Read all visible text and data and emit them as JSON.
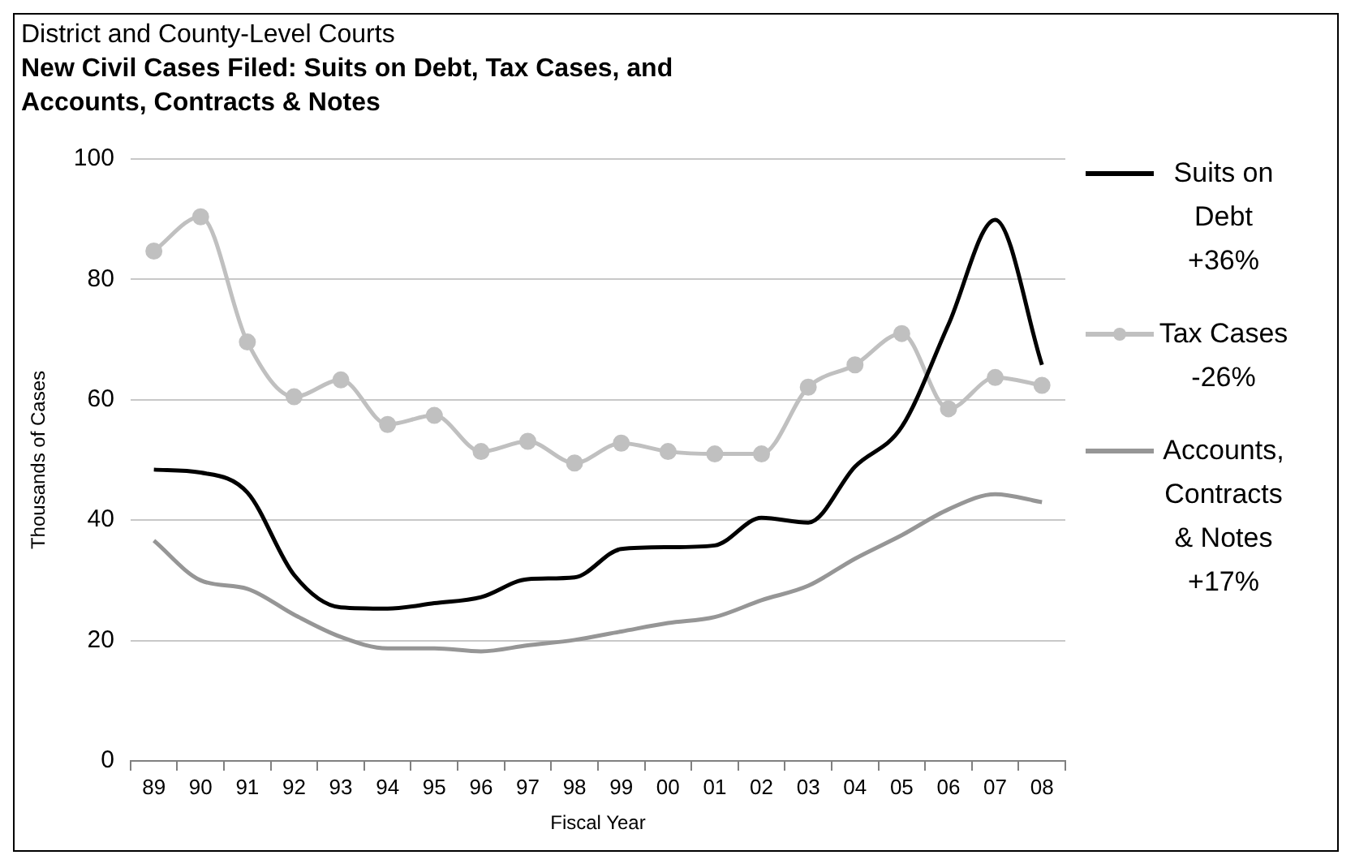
{
  "chart_data": {
    "type": "line",
    "subtitle": "District and County-Level Courts",
    "title": "New Civil Cases Filed: Suits on Debt, Tax Cases, and Accounts, Contracts & Notes",
    "xlabel": "Fiscal Year",
    "ylabel": "Thousands of Cases",
    "categories": [
      "89",
      "90",
      "91",
      "92",
      "93",
      "94",
      "95",
      "96",
      "97",
      "98",
      "99",
      "00",
      "01",
      "02",
      "03",
      "04",
      "05",
      "06",
      "07",
      "08"
    ],
    "series": [
      {
        "name": "Suits on Debt +36%",
        "color": "#000000",
        "marker": "none",
        "values": [
          48.4,
          47.9,
          44.6,
          30.9,
          25.5,
          25.3,
          26.2,
          27.2,
          30.2,
          30.5,
          35.2,
          35.5,
          35.8,
          40.4,
          39.6,
          48.9,
          55.5,
          72.5,
          89.9,
          65.8
        ]
      },
      {
        "name": "Tax Cases -26%",
        "color": "#c0c0c0",
        "marker": "circle",
        "values": [
          84.7,
          90.4,
          69.6,
          60.5,
          63.3,
          55.9,
          57.4,
          51.4,
          53.1,
          49.5,
          52.8,
          51.4,
          51.0,
          51.0,
          62.1,
          65.8,
          71.0,
          58.5,
          63.7,
          62.4
        ]
      },
      {
        "name": "Accounts, Contracts & Notes +17%",
        "color": "#969696",
        "marker": "none",
        "values": [
          36.6,
          30.0,
          28.6,
          24.3,
          20.6,
          18.7,
          18.7,
          18.2,
          19.2,
          20.1,
          21.5,
          22.9,
          23.9,
          26.7,
          29.1,
          33.6,
          37.5,
          41.8,
          44.3,
          43.0
        ]
      }
    ],
    "ylim": [
      0,
      100
    ],
    "yticks": [
      0,
      20,
      40,
      60,
      80,
      100
    ],
    "grid": "y",
    "legend": "right"
  }
}
